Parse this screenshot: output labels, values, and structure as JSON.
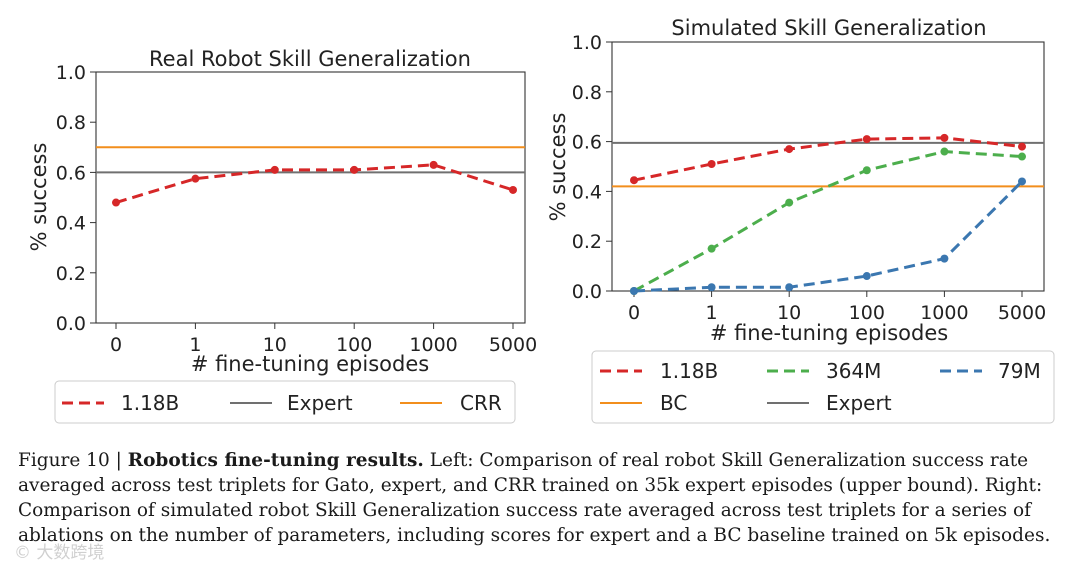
{
  "colors": {
    "red": "#d62728",
    "green": "#4cae4c",
    "blue": "#3b77b0",
    "orange": "#f28e1c",
    "gray": "#707070"
  },
  "chart_data": [
    {
      "type": "line",
      "title": "Real Robot Skill Generalization",
      "xlabel": "# fine-tuning episodes",
      "ylabel": "% success",
      "categories": [
        "0",
        "1",
        "10",
        "100",
        "1000",
        "5000"
      ],
      "ylim": [
        0,
        1.0
      ],
      "yticks": [
        "0.0",
        "0.2",
        "0.4",
        "0.6",
        "0.8",
        "1.0"
      ],
      "grid": false,
      "legend_position": "bottom",
      "series": [
        {
          "name": "1.18B",
          "style": "dashed",
          "color": "red",
          "values": [
            0.48,
            0.575,
            0.61,
            0.61,
            0.63,
            0.53
          ]
        }
      ],
      "reference_lines": [
        {
          "name": "Expert",
          "value": 0.6,
          "color": "gray"
        },
        {
          "name": "CRR",
          "value": 0.7,
          "color": "orange"
        }
      ],
      "legend": [
        {
          "label": "1.18B",
          "color": "red",
          "style": "dashed"
        },
        {
          "label": "Expert",
          "color": "gray",
          "style": "solid"
        },
        {
          "label": "CRR",
          "color": "orange",
          "style": "solid"
        }
      ]
    },
    {
      "type": "line",
      "title": "Simulated Skill Generalization",
      "xlabel": "# fine-tuning episodes",
      "ylabel": "% success",
      "categories": [
        "0",
        "1",
        "10",
        "100",
        "1000",
        "5000"
      ],
      "ylim": [
        0,
        1.0
      ],
      "yticks": [
        "0.0",
        "0.2",
        "0.4",
        "0.6",
        "0.8",
        "1.0"
      ],
      "grid": false,
      "legend_position": "bottom",
      "series": [
        {
          "name": "1.18B",
          "style": "dashed",
          "color": "red",
          "values": [
            0.445,
            0.51,
            0.57,
            0.61,
            0.615,
            0.58
          ]
        },
        {
          "name": "364M",
          "style": "dashed",
          "color": "green",
          "values": [
            0.0,
            0.17,
            0.355,
            0.485,
            0.56,
            0.54
          ]
        },
        {
          "name": "79M",
          "style": "dashed",
          "color": "blue",
          "values": [
            0.0,
            0.015,
            0.015,
            0.06,
            0.13,
            0.44
          ]
        }
      ],
      "reference_lines": [
        {
          "name": "Expert",
          "value": 0.595,
          "color": "gray"
        },
        {
          "name": "BC",
          "value": 0.42,
          "color": "orange"
        }
      ],
      "legend": [
        {
          "label": "1.18B",
          "color": "red",
          "style": "dashed"
        },
        {
          "label": "364M",
          "color": "green",
          "style": "dashed"
        },
        {
          "label": "79M",
          "color": "blue",
          "style": "dashed"
        },
        {
          "label": "BC",
          "color": "orange",
          "style": "solid"
        },
        {
          "label": "Expert",
          "color": "gray",
          "style": "solid"
        }
      ]
    }
  ],
  "caption": {
    "prefix": "Figure 10 | ",
    "bold": "Robotics fine-tuning results.",
    "text": " Left: Comparison of real robot Skill Generalization success rate averaged across test triplets for Gato, expert, and CRR trained on 35k expert episodes (upper bound). Right: Comparison of simulated robot Skill Generalization success rate averaged across test triplets for a series of ablations on the number of parameters, including scores for expert and a BC baseline trained on 5k episodes."
  },
  "watermark": "大数跨境"
}
